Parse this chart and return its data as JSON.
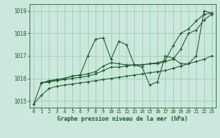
{
  "title": "Graphe pression niveau de la mer (hPa)",
  "bg_color": "#cce8dc",
  "grid_color": "#99ccbb",
  "line_color": "#1a5c2a",
  "xlim": [
    -0.5,
    23.5
  ],
  "ylim": [
    1014.7,
    1019.3
  ],
  "yticks": [
    1015,
    1016,
    1017,
    1018,
    1019
  ],
  "xticks": [
    0,
    1,
    2,
    3,
    4,
    5,
    6,
    7,
    8,
    9,
    10,
    11,
    12,
    13,
    14,
    15,
    16,
    17,
    18,
    19,
    20,
    21,
    22,
    23
  ],
  "series": [
    {
      "x": [
        0,
        1,
        2,
        3,
        4,
        5,
        6,
        7,
        8,
        9,
        10,
        11,
        12,
        13,
        14,
        15,
        16,
        17,
        18,
        19,
        20,
        21,
        22,
        23
      ],
      "y": [
        1014.85,
        1015.25,
        1015.55,
        1015.65,
        1015.7,
        1015.75,
        1015.8,
        1015.85,
        1015.9,
        1015.95,
        1016.0,
        1016.05,
        1016.1,
        1016.15,
        1016.2,
        1016.25,
        1016.3,
        1016.35,
        1016.45,
        1016.55,
        1016.65,
        1016.75,
        1016.85,
        1017.0
      ]
    },
    {
      "x": [
        1,
        2,
        3,
        4,
        5,
        6,
        7,
        8,
        9,
        10,
        11,
        12,
        13,
        14,
        15,
        16,
        17,
        18,
        19,
        20,
        21,
        22,
        23
      ],
      "y": [
        1015.8,
        1015.85,
        1015.9,
        1015.95,
        1016.0,
        1016.05,
        1016.1,
        1016.2,
        1016.35,
        1016.5,
        1016.5,
        1016.55,
        1016.6,
        1016.6,
        1016.65,
        1016.65,
        1016.75,
        1016.85,
        1017.3,
        1018.0,
        1018.15,
        1018.6,
        1018.85
      ]
    },
    {
      "x": [
        1,
        2,
        3,
        4,
        5,
        6,
        7,
        8,
        9,
        10,
        11,
        12,
        13,
        14,
        15,
        16,
        17,
        18,
        19,
        20,
        21,
        22,
        23
      ],
      "y": [
        1015.8,
        1015.9,
        1015.95,
        1016.0,
        1016.1,
        1016.15,
        1016.2,
        1016.3,
        1016.55,
        1016.7,
        1016.65,
        1016.6,
        1016.6,
        1016.6,
        1016.65,
        1016.7,
        1016.8,
        1017.45,
        1018.0,
        1018.2,
        1018.55,
        1018.85,
        1018.9
      ]
    },
    {
      "x": [
        0,
        1,
        2,
        3,
        4,
        5,
        6,
        7,
        8,
        9,
        10,
        11,
        12,
        13,
        14,
        15,
        16,
        17,
        18,
        19,
        20,
        21,
        22,
        23
      ],
      "y": [
        1014.85,
        1015.8,
        1015.85,
        1015.95,
        1016.0,
        1016.1,
        1016.15,
        1017.0,
        1017.75,
        1017.8,
        1016.85,
        1017.65,
        1017.5,
        1016.6,
        1016.5,
        1015.7,
        1015.85,
        1017.0,
        1016.9,
        1016.65,
        1016.65,
        1017.0,
        1019.0,
        1018.9
      ]
    }
  ]
}
